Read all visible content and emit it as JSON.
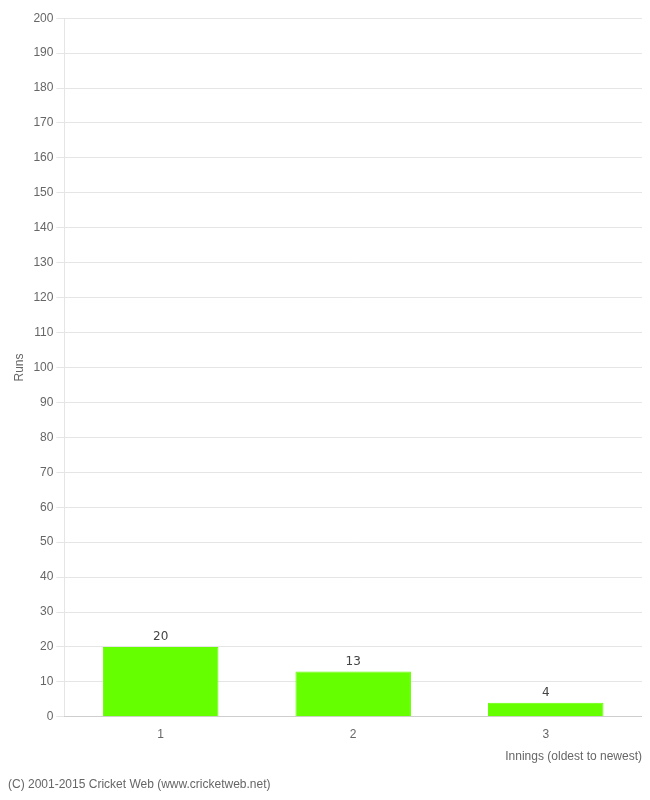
{
  "chart_data": {
    "type": "bar",
    "categories": [
      "1",
      "2",
      "3"
    ],
    "values": [
      20,
      13,
      4
    ],
    "color": "#66ff00",
    "xlabel": "Innings (oldest to newest)",
    "ylabel": "Runs",
    "ylim": [
      0,
      200
    ],
    "yticks": [
      0,
      10,
      20,
      30,
      40,
      50,
      60,
      70,
      80,
      90,
      100,
      110,
      120,
      130,
      140,
      150,
      160,
      170,
      180,
      190,
      200
    ],
    "grid": true,
    "data_labels": true,
    "footer": "(C) 2001-2015 Cricket Web (www.cricketweb.net)"
  }
}
